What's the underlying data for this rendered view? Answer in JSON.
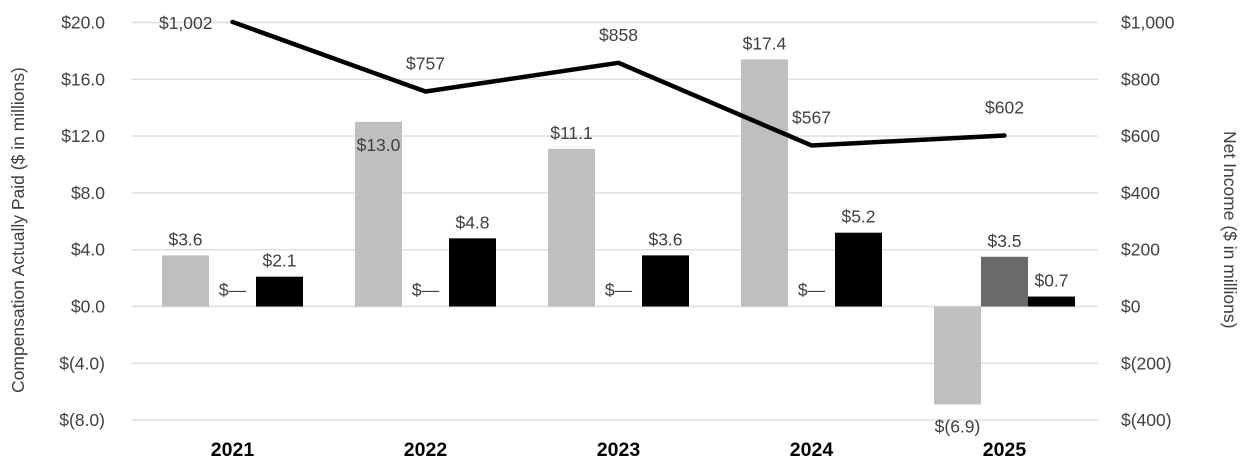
{
  "chart_data": {
    "type": "combo-bar-line",
    "categories": [
      "2021",
      "2022",
      "2023",
      "2024",
      "2025"
    ],
    "series": [
      {
        "name": "bar-series-light-gray",
        "type": "bar",
        "color": "#bfbfbf",
        "values": [
          3.6,
          13.0,
          11.1,
          17.4,
          -6.9
        ],
        "labels": [
          "$3.6",
          "$13.0",
          "$11.1",
          "$17.4",
          "$(6.9)"
        ],
        "label_positions": [
          "above",
          "inside",
          "above",
          "above",
          "below"
        ]
      },
      {
        "name": "bar-series-dark-gray",
        "type": "bar",
        "color": "#6a6a6a",
        "values": [
          0,
          0,
          0,
          0,
          3.5
        ],
        "labels": [
          "$—",
          "$—",
          "$—",
          "$—",
          "$3.5"
        ],
        "label_positions": [
          "zero",
          "zero",
          "zero",
          "zero",
          "above"
        ]
      },
      {
        "name": "bar-series-black",
        "type": "bar",
        "color": "#000000",
        "values": [
          2.1,
          4.8,
          3.6,
          5.2,
          0.7
        ],
        "labels": [
          "$2.1",
          "$4.8",
          "$3.6",
          "$5.2",
          "$0.7"
        ],
        "label_positions": [
          "above",
          "above",
          "above",
          "above",
          "above"
        ]
      },
      {
        "name": "net-income-line",
        "type": "line",
        "color": "#000000",
        "values": [
          1002,
          757,
          858,
          567,
          602
        ],
        "labels": [
          "$1,002",
          "$757",
          "$858",
          "$567",
          "$602"
        ],
        "label_positions": [
          "left",
          "above",
          "above",
          "above",
          "above"
        ]
      }
    ],
    "left_axis": {
      "title": "Compensation Actually Paid ($ in millions)",
      "ticks": [
        20,
        16,
        12,
        8,
        4,
        0,
        -4,
        -8
      ],
      "tick_labels": [
        "$20.0",
        "$16.0",
        "$12.0",
        "$8.0",
        "$4.0",
        "$0.0",
        "$(4.0)",
        "$(8.0)"
      ],
      "range": [
        -8,
        20
      ]
    },
    "right_axis": {
      "title": "Net Income ($ in millions)",
      "ticks": [
        1000,
        800,
        600,
        400,
        200,
        0,
        -200,
        -400
      ],
      "tick_labels": [
        "$1,000",
        "$800",
        "$600",
        "$400",
        "$200",
        "$0",
        "$(200)",
        "$(400)"
      ],
      "range": [
        -400,
        1000
      ]
    },
    "grid": true,
    "legend": "none"
  },
  "colors": {
    "grid": "#dedede",
    "label_text": "#404040",
    "year_label_text": "#000000",
    "background": "#ffffff"
  }
}
